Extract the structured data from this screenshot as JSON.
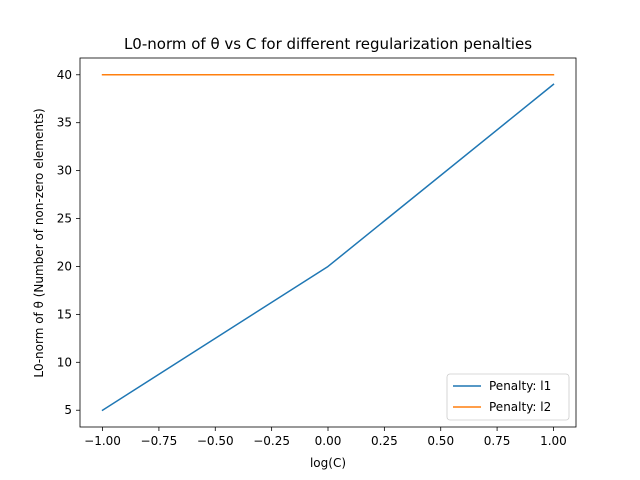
{
  "chart_data": {
    "type": "line",
    "title": "L0-norm of θ vs C for different regularization penalties",
    "xlabel": "log(C)",
    "ylabel": "L0-norm of θ (Number of non-zero elements)",
    "x": [
      -1.0,
      0.0,
      1.0
    ],
    "series": [
      {
        "name": "Penalty: l1",
        "color": "#1f77b4",
        "values": [
          5,
          20,
          39
        ]
      },
      {
        "name": "Penalty: l2",
        "color": "#ff7f0e",
        "values": [
          40,
          40,
          40
        ]
      }
    ],
    "xlim": [
      -1.1,
      1.1
    ],
    "ylim": [
      3.25,
      41.75
    ],
    "xticks": [
      -1.0,
      -0.75,
      -0.5,
      -0.25,
      0.0,
      0.25,
      0.5,
      0.75,
      1.0
    ],
    "xtick_labels": [
      "−1.00",
      "−0.75",
      "−0.50",
      "−0.25",
      "0.00",
      "0.25",
      "0.50",
      "0.75",
      "1.00"
    ],
    "yticks": [
      5,
      10,
      15,
      20,
      25,
      30,
      35,
      40
    ],
    "ytick_labels": [
      "5",
      "10",
      "15",
      "20",
      "25",
      "30",
      "35",
      "40"
    ],
    "grid": false,
    "legend_position": "bottom-right"
  }
}
